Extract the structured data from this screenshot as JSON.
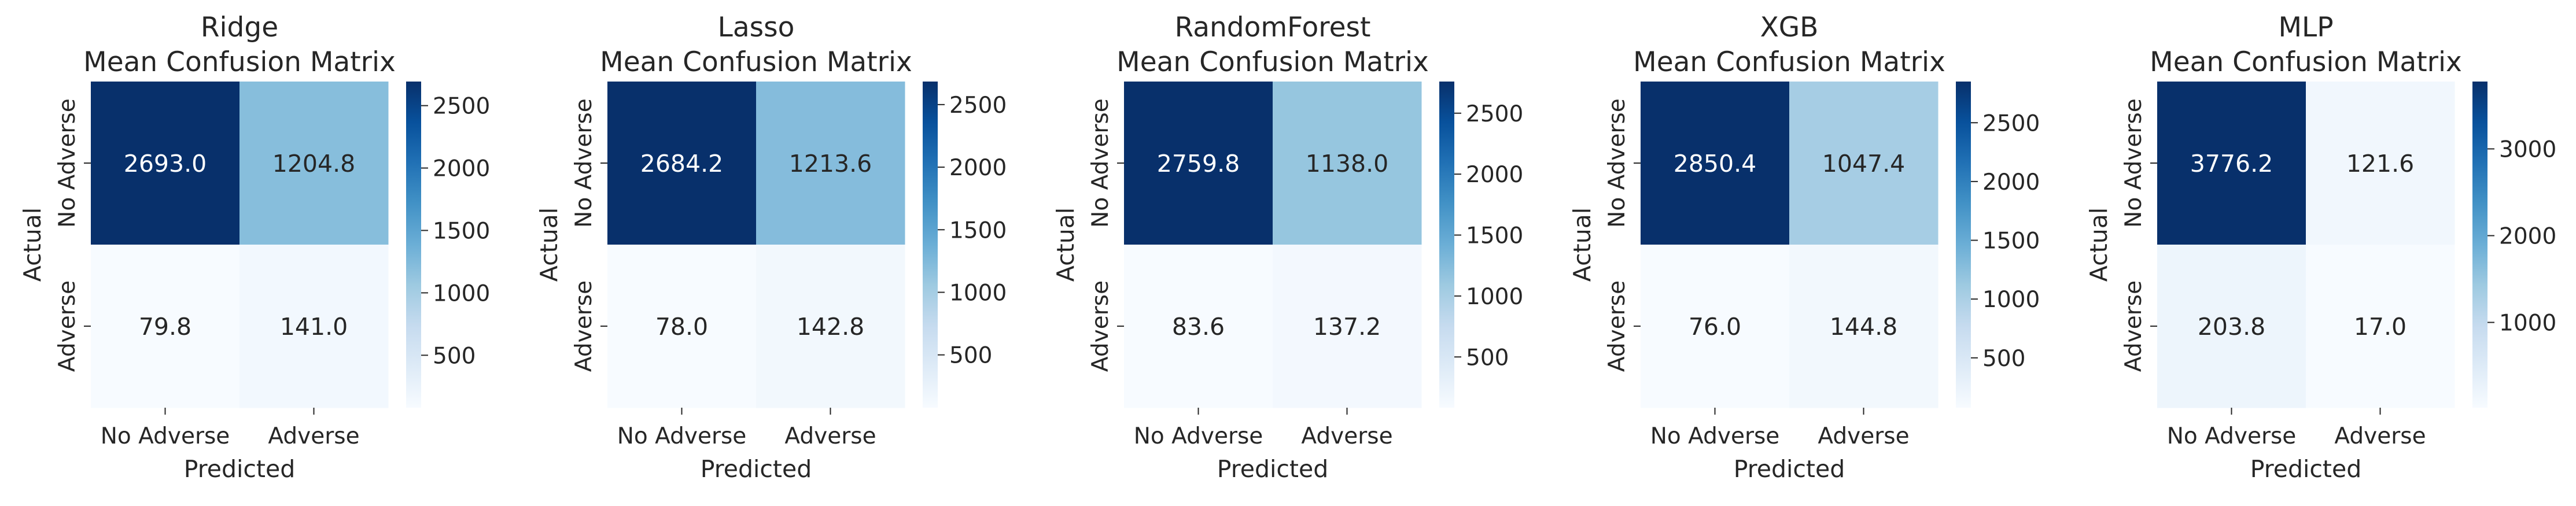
{
  "chart_data": [
    {
      "type": "heatmap",
      "model": "Ridge",
      "subtitle": "Mean Confusion Matrix",
      "xlabel": "Predicted",
      "ylabel": "Actual",
      "x_categories": [
        "No Adverse",
        "Adverse"
      ],
      "y_categories": [
        "No Adverse",
        "Adverse"
      ],
      "values": [
        [
          2693.0,
          1204.8
        ],
        [
          79.8,
          141.0
        ]
      ],
      "value_labels": [
        [
          "2693.0",
          "1204.8"
        ],
        [
          "79.8",
          "141.0"
        ]
      ],
      "colorbar_ticks": [
        500,
        1000,
        1500,
        2000,
        2500
      ],
      "colorbar_tick_labels": [
        "500",
        "1000",
        "1500",
        "2000",
        "2500"
      ],
      "colormap": "Blues"
    },
    {
      "type": "heatmap",
      "model": "Lasso",
      "subtitle": "Mean Confusion Matrix",
      "xlabel": "Predicted",
      "ylabel": "Actual",
      "x_categories": [
        "No Adverse",
        "Adverse"
      ],
      "y_categories": [
        "No Adverse",
        "Adverse"
      ],
      "values": [
        [
          2684.2,
          1213.6
        ],
        [
          78.0,
          142.8
        ]
      ],
      "value_labels": [
        [
          "2684.2",
          "1213.6"
        ],
        [
          "78.0",
          "142.8"
        ]
      ],
      "colorbar_ticks": [
        500,
        1000,
        1500,
        2000,
        2500
      ],
      "colorbar_tick_labels": [
        "500",
        "1000",
        "1500",
        "2000",
        "2500"
      ],
      "colormap": "Blues"
    },
    {
      "type": "heatmap",
      "model": "RandomForest",
      "subtitle": "Mean Confusion Matrix",
      "xlabel": "Predicted",
      "ylabel": "Actual",
      "x_categories": [
        "No Adverse",
        "Adverse"
      ],
      "y_categories": [
        "No Adverse",
        "Adverse"
      ],
      "values": [
        [
          2759.8,
          1138.0
        ],
        [
          83.6,
          137.2
        ]
      ],
      "value_labels": [
        [
          "2759.8",
          "1138.0"
        ],
        [
          "83.6",
          "137.2"
        ]
      ],
      "colorbar_ticks": [
        500,
        1000,
        1500,
        2000,
        2500
      ],
      "colorbar_tick_labels": [
        "500",
        "1000",
        "1500",
        "2000",
        "2500"
      ],
      "colormap": "Blues"
    },
    {
      "type": "heatmap",
      "model": "XGB",
      "subtitle": "Mean Confusion Matrix",
      "xlabel": "Predicted",
      "ylabel": "Actual",
      "x_categories": [
        "No Adverse",
        "Adverse"
      ],
      "y_categories": [
        "No Adverse",
        "Adverse"
      ],
      "values": [
        [
          2850.4,
          1047.4
        ],
        [
          76.0,
          144.8
        ]
      ],
      "value_labels": [
        [
          "2850.4",
          "1047.4"
        ],
        [
          "76.0",
          "144.8"
        ]
      ],
      "colorbar_ticks": [
        500,
        1000,
        1500,
        2000,
        2500
      ],
      "colorbar_tick_labels": [
        "500",
        "1000",
        "1500",
        "2000",
        "2500"
      ],
      "colormap": "Blues"
    },
    {
      "type": "heatmap",
      "model": "MLP",
      "subtitle": "Mean Confusion Matrix",
      "xlabel": "Predicted",
      "ylabel": "Actual",
      "x_categories": [
        "No Adverse",
        "Adverse"
      ],
      "y_categories": [
        "No Adverse",
        "Adverse"
      ],
      "values": [
        [
          3776.2,
          121.6
        ],
        [
          203.8,
          17.0
        ]
      ],
      "value_labels": [
        [
          "3776.2",
          "121.6"
        ],
        [
          "203.8",
          "17.0"
        ]
      ],
      "colorbar_ticks": [
        1000,
        2000,
        3000
      ],
      "colorbar_tick_labels": [
        "1000",
        "2000",
        "3000"
      ],
      "colormap": "Blues"
    }
  ]
}
